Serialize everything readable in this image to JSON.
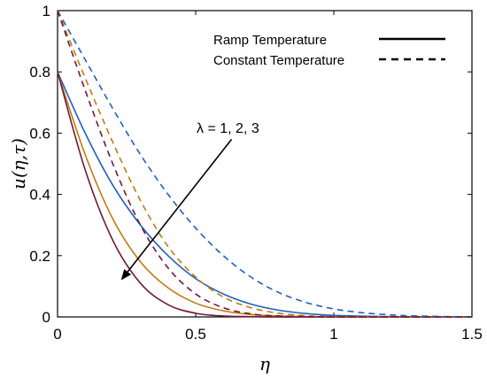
{
  "chart_data": {
    "type": "line",
    "xlabel": "η",
    "ylabel": "u(η,τ)",
    "xlim": [
      0,
      1.5
    ],
    "ylim": [
      0,
      1
    ],
    "xticks": [
      "0",
      "0.5",
      "1",
      "1.5"
    ],
    "yticks": [
      "0",
      "0.2",
      "0.4",
      "0.6",
      "0.8",
      "1"
    ],
    "grid": false,
    "legend_position": "top-right",
    "legend": [
      {
        "label": "Ramp Temperature",
        "style": "solid"
      },
      {
        "label": "Constant Temperature",
        "style": "dashed"
      }
    ],
    "annotation": {
      "text": "λ = 1, 2, 3",
      "arrow_from": [
        0.63,
        0.58
      ],
      "arrow_to": [
        0.23,
        0.12
      ]
    },
    "series": [
      {
        "style": "solid",
        "color": "#1f5fbf",
        "x": [
          0,
          0.1,
          0.2,
          0.3,
          0.4,
          0.5,
          0.6,
          0.7,
          0.8,
          0.9,
          1.0,
          1.2,
          1.5
        ],
        "y": [
          0.8,
          0.6,
          0.43,
          0.3,
          0.2,
          0.125,
          0.075,
          0.042,
          0.022,
          0.011,
          0.005,
          0.001,
          0
        ]
      },
      {
        "style": "solid",
        "color": "#c07a10",
        "x": [
          0,
          0.1,
          0.2,
          0.3,
          0.4,
          0.5,
          0.6,
          0.7,
          0.8,
          1.0,
          1.2,
          1.5
        ],
        "y": [
          0.8,
          0.53,
          0.32,
          0.18,
          0.095,
          0.045,
          0.02,
          0.008,
          0.003,
          0,
          0,
          0
        ]
      },
      {
        "style": "solid",
        "color": "#6e1a3a",
        "x": [
          0,
          0.1,
          0.2,
          0.3,
          0.4,
          0.5,
          0.6,
          0.7,
          0.8,
          1.0,
          1.5
        ],
        "y": [
          0.8,
          0.48,
          0.25,
          0.11,
          0.04,
          0.012,
          0.003,
          0.001,
          0,
          0,
          0
        ]
      },
      {
        "style": "dashed",
        "color": "#1f5fbf",
        "x": [
          0,
          0.1,
          0.2,
          0.3,
          0.4,
          0.5,
          0.6,
          0.7,
          0.8,
          0.9,
          1.0,
          1.1,
          1.2,
          1.3,
          1.5
        ],
        "y": [
          1.0,
          0.84,
          0.68,
          0.53,
          0.4,
          0.29,
          0.2,
          0.13,
          0.08,
          0.047,
          0.026,
          0.014,
          0.007,
          0.003,
          0
        ]
      },
      {
        "style": "dashed",
        "color": "#c07a10",
        "x": [
          0,
          0.1,
          0.2,
          0.3,
          0.4,
          0.5,
          0.6,
          0.7,
          0.8,
          0.9,
          1.0,
          1.2,
          1.5
        ],
        "y": [
          1.0,
          0.78,
          0.57,
          0.38,
          0.23,
          0.13,
          0.065,
          0.03,
          0.012,
          0.004,
          0.001,
          0,
          0
        ]
      },
      {
        "style": "dashed",
        "color": "#6e1a3a",
        "x": [
          0,
          0.1,
          0.2,
          0.3,
          0.4,
          0.5,
          0.6,
          0.7,
          0.8,
          1.0,
          1.5
        ],
        "y": [
          1.0,
          0.74,
          0.5,
          0.3,
          0.16,
          0.075,
          0.03,
          0.01,
          0.003,
          0,
          0
        ]
      }
    ]
  }
}
